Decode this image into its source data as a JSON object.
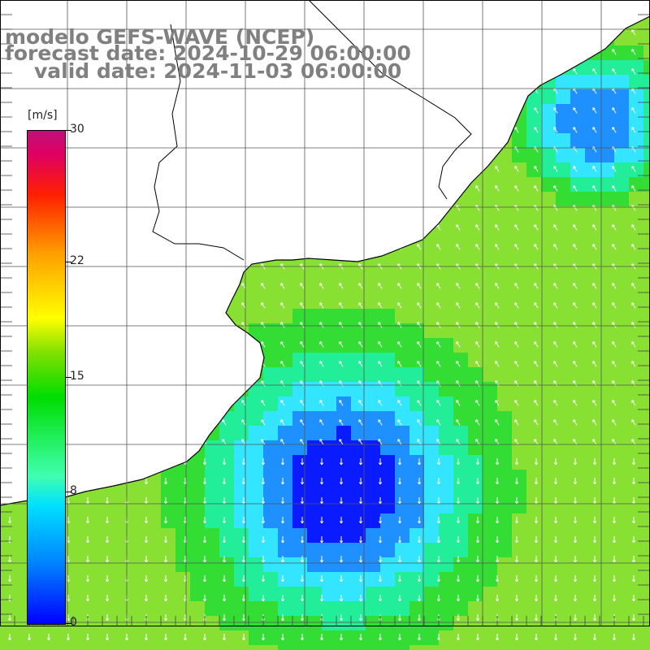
{
  "title": {
    "line1": "modelo GEFS-WAVE (NCEP)",
    "line2": "forecast date: 2024-10-29 06:00:00",
    "line3": "valid date: 2024-11-03 06:00:00"
  },
  "colorbar": {
    "unit": "[m/s]",
    "ticks": [
      {
        "label": "30",
        "value": 30
      },
      {
        "label": "22",
        "value": 22
      },
      {
        "label": "15",
        "value": 15
      },
      {
        "label": "8",
        "value": 8
      },
      {
        "label": "0",
        "value": 0
      }
    ],
    "min": 0,
    "max": 30
  },
  "map": {
    "ocean_colors": {
      "low": "#0a1cff",
      "mid_low": "#1e90ff",
      "mid": "#33e5ff",
      "mid_high": "#22ee99",
      "high": "#33dd33",
      "very_high": "#88e033"
    },
    "land_color": "#ffffff",
    "coast_color": "#000000",
    "grid_color": "#555555",
    "arrow_color": "#ffffff",
    "low_center_labels": true
  }
}
